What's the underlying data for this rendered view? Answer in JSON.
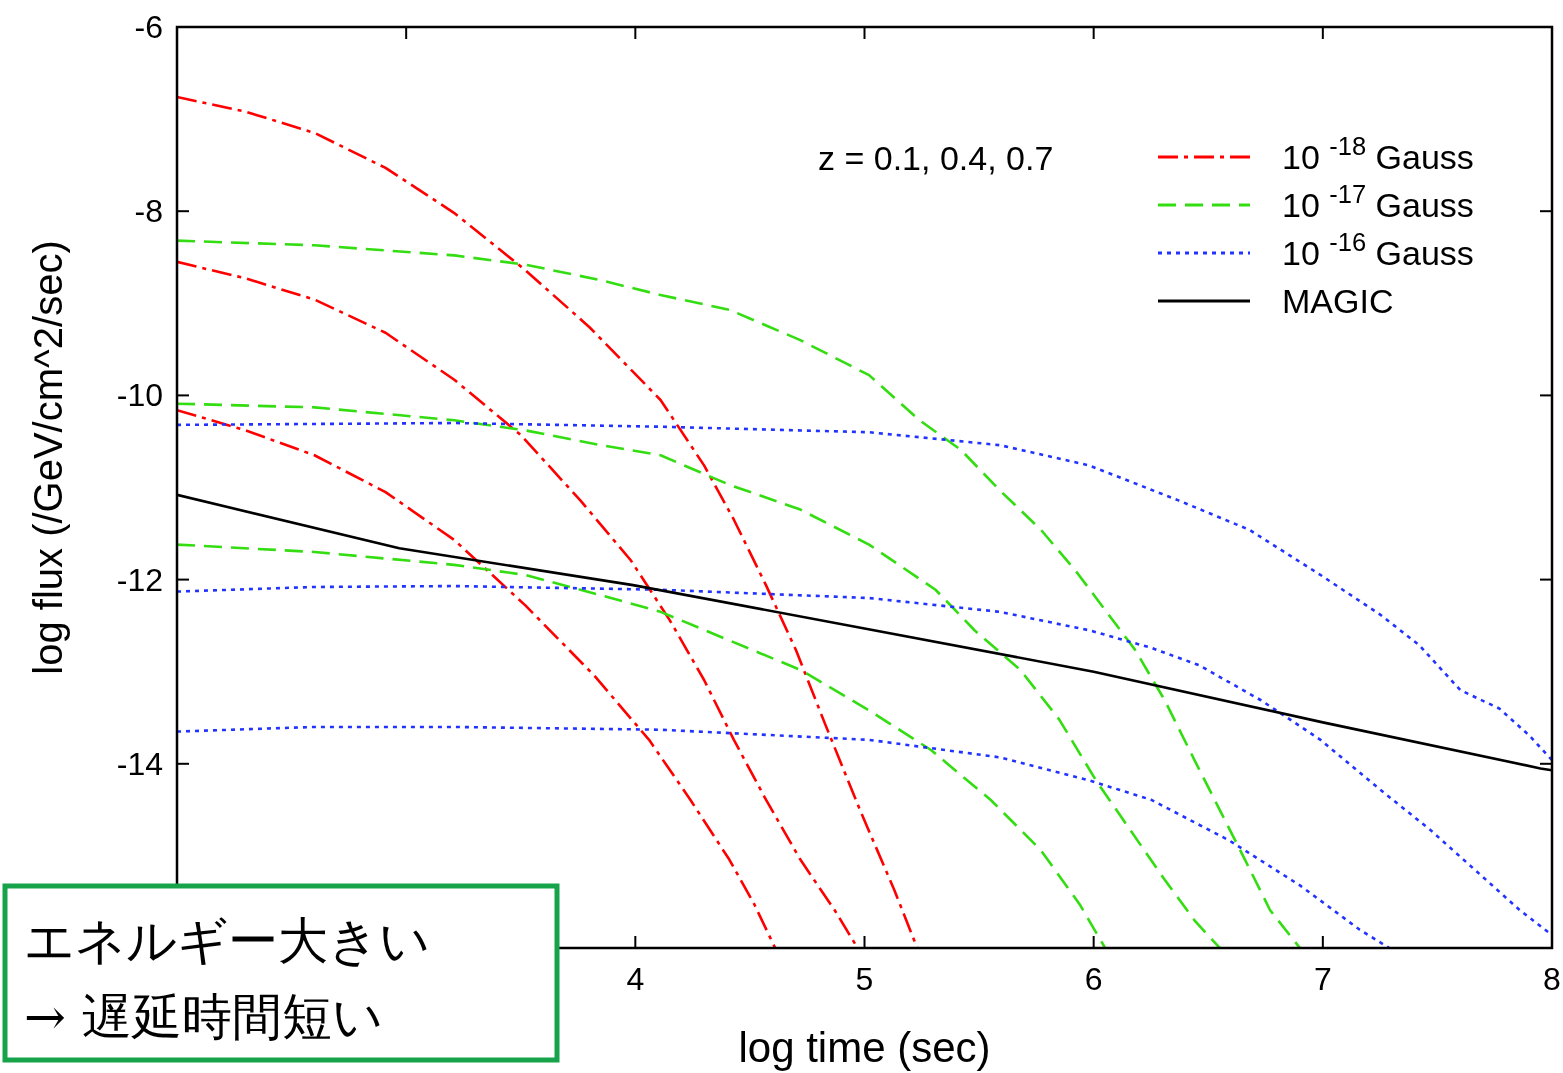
{
  "chart_data": {
    "type": "line",
    "xlabel": "log time (sec)",
    "ylabel": "log flux (/GeV/cm^2/sec)",
    "xlim": [
      2,
      8
    ],
    "ylim": [
      -16,
      -6
    ],
    "xticks": [
      {
        "value": 2,
        "label": null
      },
      {
        "value": 3,
        "label": null
      },
      4,
      5,
      6,
      7,
      8
    ],
    "yticks": [
      {
        "value": -16,
        "label": null
      },
      -14,
      -12,
      -10,
      -8,
      -6
    ],
    "legend": "top right",
    "annotations": [
      "z = 0.1, 0.4, 0.7",
      "エネルギー大きい\n→ 遅延時間短い"
    ],
    "series": [
      {
        "name": "10 $^{-18}$ Gauss",
        "color": "#ff0000",
        "line_style": "dashdot",
        "x": [
          2,
          2.3,
          2.6,
          2.91,
          3.21,
          3.52,
          3.8,
          4.11,
          4.3,
          4.43,
          4.57,
          4.7,
          4.83,
          4.98,
          5.13,
          5.23
        ],
        "values": [
          -6.76,
          -6.92,
          -7.15,
          -7.53,
          -8.02,
          -8.64,
          -9.26,
          -10.05,
          -10.76,
          -11.35,
          -12.06,
          -12.76,
          -13.58,
          -14.5,
          -15.37,
          -16
        ]
      },
      {
        "color": "#ff0000",
        "line_style": "dashdot",
        "x": [
          2,
          2.3,
          2.6,
          2.91,
          3.21,
          3.5,
          3.76,
          3.98,
          4.15,
          4.3,
          4.43,
          4.57,
          4.72,
          4.87,
          4.97
        ],
        "values": [
          -8.55,
          -8.73,
          -8.96,
          -9.32,
          -9.83,
          -10.43,
          -11.14,
          -11.79,
          -12.44,
          -13.09,
          -13.74,
          -14.39,
          -15.04,
          -15.59,
          -16
        ]
      },
      {
        "color": "#ff0000",
        "line_style": "dashdot",
        "x": [
          2,
          2.3,
          2.6,
          2.91,
          3.21,
          3.52,
          3.82,
          4.06,
          4.24,
          4.41,
          4.52,
          4.61
        ],
        "values": [
          -10.16,
          -10.38,
          -10.65,
          -11.05,
          -11.57,
          -12.28,
          -13.04,
          -13.74,
          -14.39,
          -15.04,
          -15.53,
          -16
        ]
      },
      {
        "name": "10 $^{-17}$ Gauss",
        "color": "#33dd11",
        "line_style": "dashed",
        "x": [
          2,
          2.6,
          3.21,
          3.52,
          3.85,
          4.11,
          4.41,
          4.72,
          5.02,
          5.24,
          5.42,
          5.59,
          5.77,
          5.92,
          6.05,
          6.18,
          6.31,
          6.44,
          6.55,
          6.66,
          6.77,
          6.9
        ],
        "values": [
          -8.32,
          -8.37,
          -8.48,
          -8.58,
          -8.75,
          -8.91,
          -9.07,
          -9.4,
          -9.78,
          -10.27,
          -10.59,
          -11.03,
          -11.46,
          -11.9,
          -12.33,
          -12.76,
          -13.31,
          -13.96,
          -14.5,
          -15.04,
          -15.59,
          -16
        ]
      },
      {
        "color": "#33dd11",
        "line_style": "dashed",
        "x": [
          2,
          2.6,
          3.21,
          3.52,
          3.85,
          4.11,
          4.41,
          4.72,
          5.02,
          5.31,
          5.48,
          5.68,
          5.85,
          6.01,
          6.16,
          6.31,
          6.44,
          6.55
        ],
        "values": [
          -10.09,
          -10.13,
          -10.27,
          -10.38,
          -10.54,
          -10.65,
          -10.97,
          -11.24,
          -11.62,
          -12.11,
          -12.55,
          -12.98,
          -13.52,
          -14.18,
          -14.72,
          -15.26,
          -15.7,
          -16
        ]
      },
      {
        "color": "#33dd11",
        "line_style": "dashed",
        "x": [
          2,
          2.6,
          3.21,
          3.52,
          3.85,
          4.11,
          4.41,
          4.72,
          5.02,
          5.29,
          5.55,
          5.77,
          5.94,
          6.05
        ],
        "values": [
          -11.62,
          -11.7,
          -11.84,
          -11.95,
          -12.17,
          -12.35,
          -12.66,
          -12.98,
          -13.42,
          -13.85,
          -14.39,
          -14.94,
          -15.53,
          -16
        ]
      },
      {
        "name": "10 $^{-16}$ Gauss",
        "color": "#2233ff",
        "line_style": "dotted",
        "x": [
          2,
          3.21,
          4.11,
          5.02,
          5.59,
          5.98,
          6.37,
          6.68,
          6.99,
          7.25,
          7.42,
          7.6,
          7.77,
          7.9,
          8
        ],
        "values": [
          -10.32,
          -10.3,
          -10.34,
          -10.4,
          -10.54,
          -10.76,
          -11.14,
          -11.46,
          -11.95,
          -12.38,
          -12.71,
          -13.2,
          -13.4,
          -13.69,
          -13.96
        ]
      },
      {
        "color": "#2233ff",
        "line_style": "dotted",
        "x": [
          2,
          2.6,
          3.21,
          4.11,
          5.02,
          5.59,
          5.98,
          6.25,
          6.46,
          6.73,
          6.99,
          7.25,
          7.47,
          7.69,
          7.86,
          8
        ],
        "values": [
          -12.13,
          -12.08,
          -12.07,
          -12.11,
          -12.2,
          -12.35,
          -12.55,
          -12.74,
          -12.93,
          -13.31,
          -13.74,
          -14.28,
          -14.72,
          -15.21,
          -15.59,
          -15.86
        ]
      },
      {
        "color": "#2233ff",
        "line_style": "dotted",
        "x": [
          2,
          2.6,
          3.21,
          4.11,
          5.02,
          5.59,
          5.98,
          6.25,
          6.59,
          6.9,
          7.16,
          7.29
        ],
        "values": [
          -13.65,
          -13.6,
          -13.6,
          -13.63,
          -13.74,
          -13.93,
          -14.18,
          -14.39,
          -14.83,
          -15.32,
          -15.8,
          -16
        ]
      },
      {
        "name": "MAGIC",
        "color": "#000000",
        "line_style": "solid",
        "x": [
          2,
          2.97,
          3.99,
          5.0,
          6.0,
          7.0,
          7.95,
          8
        ],
        "values": [
          -11.08,
          -11.66,
          -12.06,
          -12.53,
          -13.0,
          -13.55,
          -14.05,
          -14.07
        ]
      }
    ]
  }
}
